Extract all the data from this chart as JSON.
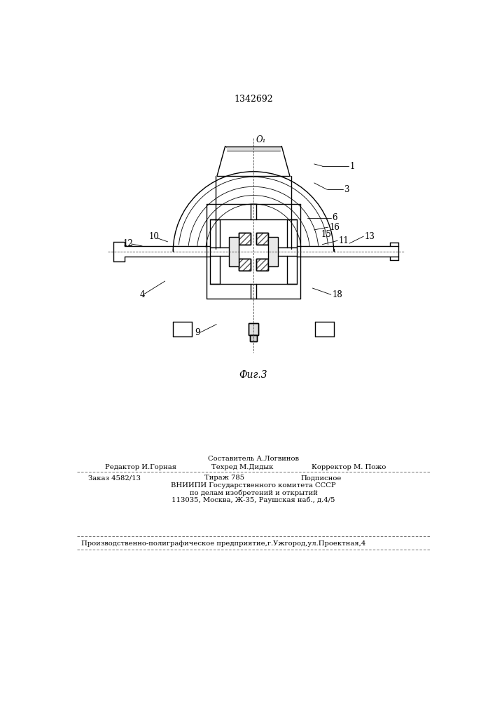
{
  "patent_number": "1342692",
  "fig_label": "Фиг.3",
  "bg_color": "#ffffff",
  "line_color": "#000000",
  "hatch_color": "#444444",
  "footer_sestavitel": "Составитель А.Логвинов",
  "footer_redaktor": "Редактор И.Горная",
  "footer_tehred": "Техред М.Дидык",
  "footer_korrektor": "Корректор М. Пожо",
  "footer_zakaz": "Заказ 4582/13",
  "footer_tirazh": "Тираж 785",
  "footer_podpisnoe": "Подписное",
  "footer_vniip1": "ВНИИПИ Государственного комитета СССР",
  "footer_vniip2": "по делам изобретений и открытий",
  "footer_vniip3": "113035, Москва, Ж-35, Раушская наб., д.4/5",
  "footer_proizv": "Производственно-полиграфическое предприятие,г.Ужгород,ул.Проектная,4"
}
